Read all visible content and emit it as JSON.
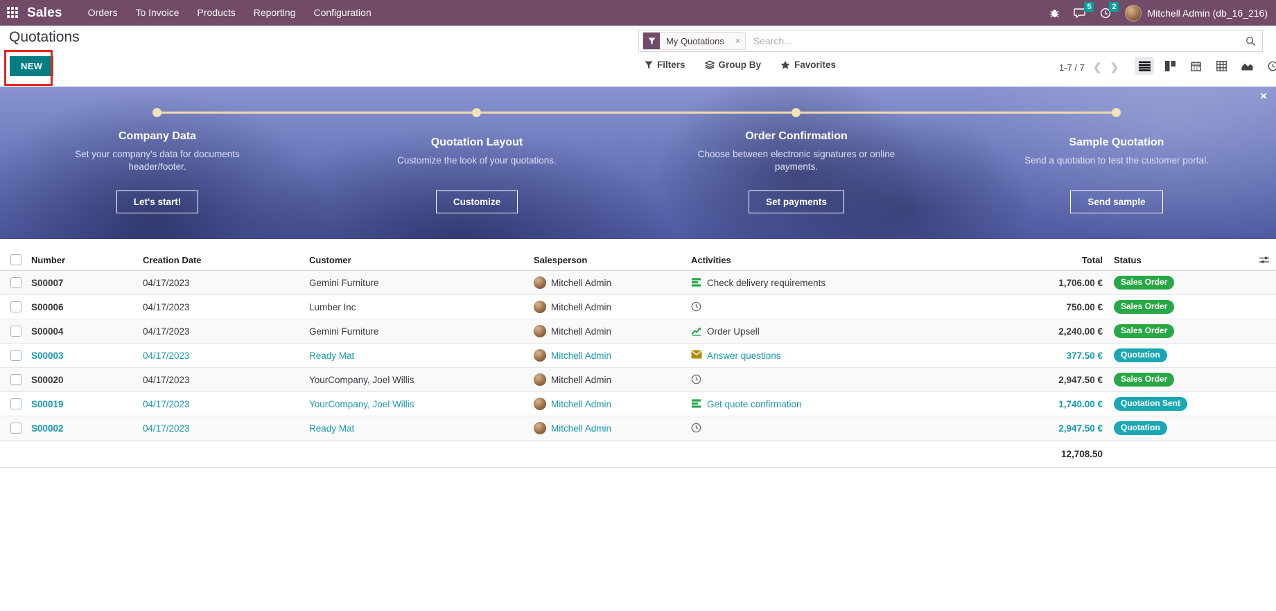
{
  "navbar": {
    "app": "Sales",
    "menu": [
      "Orders",
      "To Invoice",
      "Products",
      "Reporting",
      "Configuration"
    ],
    "messages_badge": "5",
    "activities_badge": "2",
    "user": "Mitchell Admin (db_16_216)"
  },
  "control": {
    "title": "Quotations",
    "new_button": "NEW",
    "facet": "My Quotations",
    "facet_close": "×",
    "search_placeholder": "Search...",
    "filters": "Filters",
    "group_by": "Group By",
    "favorites": "Favorites",
    "pager": "1-7 / 7",
    "close_banner": "×"
  },
  "banner": {
    "steps": [
      {
        "title": "Company Data",
        "desc": "Set your company's data for documents header/footer.",
        "button": "Let's start!"
      },
      {
        "title": "Quotation Layout",
        "desc": "Customize the look of your quotations.",
        "button": "Customize"
      },
      {
        "title": "Order Confirmation",
        "desc": "Choose between electronic signatures or online payments.",
        "button": "Set payments"
      },
      {
        "title": "Sample Quotation",
        "desc": "Send a quotation to test the customer portal.",
        "button": "Send sample"
      }
    ]
  },
  "table": {
    "headers": {
      "number": "Number",
      "creation_date": "Creation Date",
      "customer": "Customer",
      "salesperson": "Salesperson",
      "activities": "Activities",
      "total": "Total",
      "status": "Status"
    },
    "rows": [
      {
        "number": "S00007",
        "date": "04/17/2023",
        "customer": "Gemini Furniture",
        "salesperson": "Mitchell Admin",
        "activity": {
          "icon": "list",
          "label": "Check delivery requirements"
        },
        "total": "1,706.00 €",
        "status": "Sales Order",
        "status_color": "green",
        "highlight": false
      },
      {
        "number": "S00006",
        "date": "04/17/2023",
        "customer": "Lumber Inc",
        "salesperson": "Mitchell Admin",
        "activity": {
          "icon": "clock",
          "label": ""
        },
        "total": "750.00 €",
        "status": "Sales Order",
        "status_color": "green",
        "highlight": false
      },
      {
        "number": "S00004",
        "date": "04/17/2023",
        "customer": "Gemini Furniture",
        "salesperson": "Mitchell Admin",
        "activity": {
          "icon": "chart",
          "label": "Order Upsell"
        },
        "total": "2,240.00 €",
        "status": "Sales Order",
        "status_color": "green",
        "highlight": false
      },
      {
        "number": "S00003",
        "date": "04/17/2023",
        "customer": "Ready Mat",
        "salesperson": "Mitchell Admin",
        "activity": {
          "icon": "envelope",
          "label": "Answer questions"
        },
        "total": "377.50 €",
        "status": "Quotation",
        "status_color": "teal",
        "highlight": true
      },
      {
        "number": "S00020",
        "date": "04/17/2023",
        "customer": "YourCompany, Joel Willis",
        "salesperson": "Mitchell Admin",
        "activity": {
          "icon": "clock",
          "label": ""
        },
        "total": "2,947.50 €",
        "status": "Sales Order",
        "status_color": "green",
        "highlight": false
      },
      {
        "number": "S00019",
        "date": "04/17/2023",
        "customer": "YourCompany, Joel Willis",
        "salesperson": "Mitchell Admin",
        "activity": {
          "icon": "list",
          "label": "Get quote confirmation"
        },
        "total": "1,740.00 €",
        "status": "Quotation Sent",
        "status_color": "teal",
        "highlight": true
      },
      {
        "number": "S00002",
        "date": "04/17/2023",
        "customer": "Ready Mat",
        "salesperson": "Mitchell Admin",
        "activity": {
          "icon": "clock",
          "label": ""
        },
        "total": "2,947.50 €",
        "status": "Quotation",
        "status_color": "teal",
        "highlight": true
      }
    ],
    "sum": "12,708.50"
  },
  "colors": {
    "navbar": "#714B67",
    "accent_teal": "#017e84",
    "badge_green": "#28a745",
    "badge_teal": "#1ba8b5",
    "row_link_teal": "#1799ad",
    "annotation_red": "#e6251d",
    "notification_badge": "#00A09D"
  },
  "icons": {
    "apps": "grid-of-dots",
    "bug": "debug",
    "messages": "chat-bubble",
    "activities": "clock",
    "filter_facet": "funnel",
    "filters": "funnel",
    "group_by": "layers",
    "favorites": "star",
    "search": "magnifier",
    "download": "download-tray",
    "pager_prev": "chevron-left",
    "pager_next": "chevron-right",
    "view_list": "list-lines",
    "view_kanban": "kanban-blocks",
    "view_calendar": "calendar",
    "view_pivot": "pivot-grid",
    "view_graph": "area-chart",
    "view_activity": "clock",
    "optional_columns": "sliders",
    "activity_list": "green-task-list",
    "activity_clock": "grey-clock",
    "activity_chart": "green-upsell-chart",
    "activity_envelope": "amber-envelope"
  }
}
